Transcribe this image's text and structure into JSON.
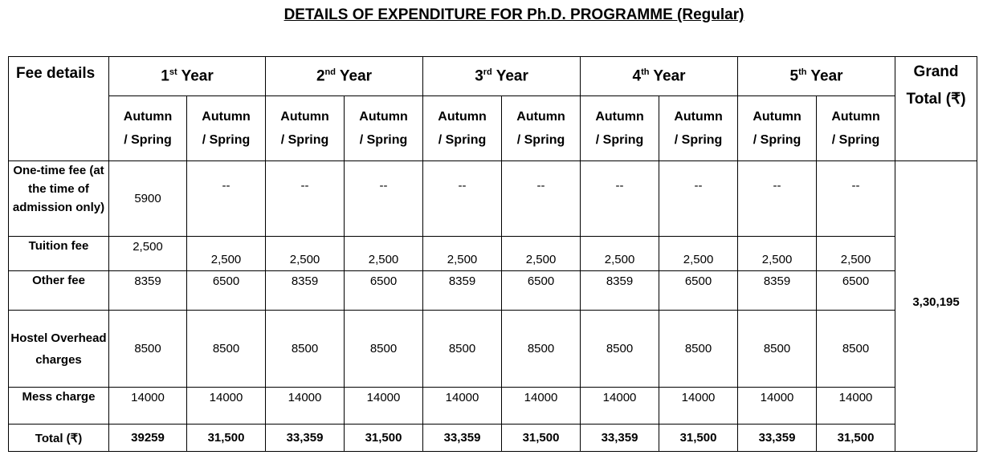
{
  "title": "DETAILS OF EXPENDITURE FOR Ph.D. PROGRAMME (Regular)",
  "header": {
    "fee_details": "Fee details",
    "years": [
      {
        "num": "1",
        "sup": "st",
        "label": " Year"
      },
      {
        "num": "2",
        "sup": "nd",
        "label": " Year"
      },
      {
        "num": "3",
        "sup": "rd",
        "label": " Year"
      },
      {
        "num": "4",
        "sup": "th",
        "label": " Year"
      },
      {
        "num": "5",
        "sup": "th",
        "label": " Year"
      }
    ],
    "semester_line1": "Autumn",
    "semester_line2": "/ Spring",
    "grand_total": "Grand Total (₹)"
  },
  "rows": [
    {
      "label": "One-time fee (at the time of admission only)",
      "values": [
        "5900",
        "--",
        "--",
        "--",
        "--",
        "--",
        "--",
        "--",
        "--",
        "--"
      ]
    },
    {
      "label": "Tuition fee",
      "values": [
        "2,500",
        "2,500",
        "2,500",
        "2,500",
        "2,500",
        "2,500",
        "2,500",
        "2,500",
        "2,500",
        "2,500"
      ]
    },
    {
      "label": "Other fee",
      "values": [
        "8359",
        "6500",
        "8359",
        "6500",
        "8359",
        "6500",
        "8359",
        "6500",
        "8359",
        "6500"
      ]
    },
    {
      "label": "Hostel Overhead charges",
      "values": [
        "8500",
        "8500",
        "8500",
        "8500",
        "8500",
        "8500",
        "8500",
        "8500",
        "8500",
        "8500"
      ]
    },
    {
      "label": "Mess charge",
      "values": [
        "14000",
        "14000",
        "14000",
        "14000",
        "14000",
        "14000",
        "14000",
        "14000",
        "14000",
        "14000"
      ]
    },
    {
      "label": "Total (₹)",
      "values": [
        "39259",
        "31,500",
        "33,359",
        "31,500",
        "33,359",
        "31,500",
        "33,359",
        "31,500",
        "33,359",
        "31,500"
      ]
    }
  ],
  "grand_total_value": "3,30,195"
}
